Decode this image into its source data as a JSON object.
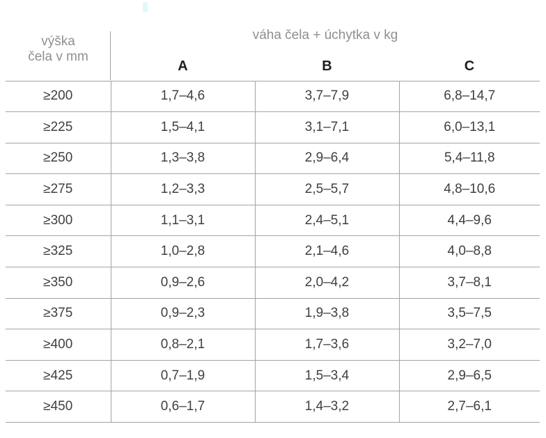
{
  "colors": {
    "border": "#a3a3a3",
    "text": "#3f3f3f",
    "muted": "#8f8f8f",
    "heading": "#1e1e1e",
    "bg": "#ffffff"
  },
  "table": {
    "corner_header": {
      "line1": "výška",
      "line2": "čela v mm"
    },
    "group_header": "váha čela + úchytka v kg",
    "columns": [
      "A",
      "B",
      "C"
    ],
    "rows": [
      {
        "label": "≥200",
        "values": [
          "1,7–4,6",
          "3,7–7,9",
          "6,8–14,7"
        ]
      },
      {
        "label": "≥225",
        "values": [
          "1,5–4,1",
          "3,1–7,1",
          "6,0–13,1"
        ]
      },
      {
        "label": "≥250",
        "values": [
          "1,3–3,8",
          "2,9–6,4",
          "5,4–11,8"
        ]
      },
      {
        "label": "≥275",
        "values": [
          "1,2–3,3",
          "2,5–5,7",
          "4,8–10,6"
        ]
      },
      {
        "label": "≥300",
        "values": [
          "1,1–3,1",
          "2,4–5,1",
          "4,4–9,6"
        ]
      },
      {
        "label": "≥325",
        "values": [
          "1,0–2,8",
          "2,1–4,6",
          "4,0–8,8"
        ]
      },
      {
        "label": "≥350",
        "values": [
          "0,9–2,6",
          "2,0–4,2",
          "3,7–8,1"
        ]
      },
      {
        "label": "≥375",
        "values": [
          "0,9–2,3",
          "1,9–3,8",
          "3,5–7,5"
        ]
      },
      {
        "label": "≥400",
        "values": [
          "0,8–2,1",
          "1,7–3,6",
          "3,2–7,0"
        ]
      },
      {
        "label": "≥425",
        "values": [
          "0,7–1,9",
          "1,5–3,4",
          "2,9–6,5"
        ]
      },
      {
        "label": "≥450",
        "values": [
          "0,6–1,7",
          "1,4–3,2",
          "2,7–6,1"
        ]
      }
    ]
  }
}
